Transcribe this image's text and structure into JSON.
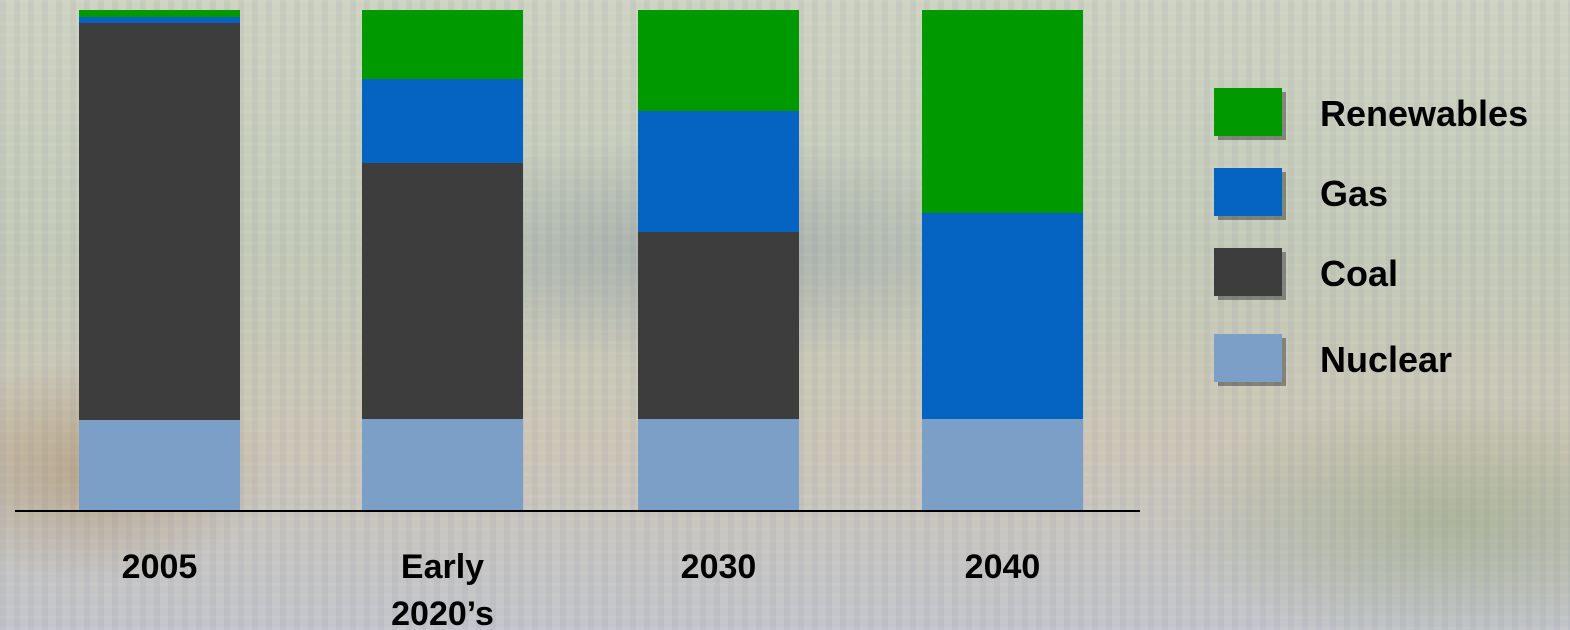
{
  "chart_data": {
    "type": "bar",
    "stacked": true,
    "categories": [
      "2005",
      "Early\n2020’s",
      "2030",
      "2040"
    ],
    "series": [
      {
        "name": "Nuclear",
        "color": "#7b9fc6",
        "values": [
          18,
          18.2,
          18.2,
          18.2
        ]
      },
      {
        "name": "Coal",
        "color": "#3d3d3d",
        "values": [
          79.4,
          51.2,
          37.4,
          0
        ]
      },
      {
        "name": "Gas",
        "color": "#0563c1",
        "values": [
          1.2,
          16.8,
          24.2,
          41.2
        ]
      },
      {
        "name": "Renewables",
        "color": "#009900",
        "values": [
          1.4,
          13.8,
          20.2,
          40.6
        ]
      }
    ],
    "ylim": [
      0,
      100
    ],
    "legend_position": "right",
    "legend_order": [
      "Renewables",
      "Gas",
      "Coal",
      "Nuclear"
    ],
    "gridlines": false
  }
}
